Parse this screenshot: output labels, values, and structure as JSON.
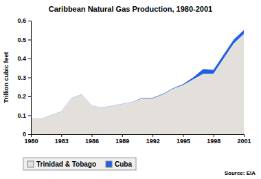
{
  "chart_data": {
    "type": "area",
    "title": "Caribbean Natural Gas Production, 1980-2001",
    "y_label": "Trillion cubic feet",
    "annotation": "Source: EIA",
    "stacked": true,
    "grid": false,
    "legend": "bottom",
    "x": [
      1980,
      1981,
      1982,
      1983,
      1984,
      1985,
      1986,
      1987,
      1988,
      1989,
      1990,
      1991,
      1992,
      1993,
      1994,
      1995,
      1996,
      1997,
      1998,
      1999,
      2000,
      2001
    ],
    "xlim": [
      1980,
      2001
    ],
    "xticks": [
      1980,
      1983,
      1986,
      1989,
      1992,
      1995,
      1998,
      2001
    ],
    "ylim": [
      0,
      0.6
    ],
    "yticks": [
      0,
      0.1,
      0.2,
      0.3,
      0.4,
      0.5,
      0.6
    ],
    "series": [
      {
        "name": "Trinidad & Tobago",
        "color": "#e3e0db",
        "values": [
          0.08,
          0.08,
          0.1,
          0.12,
          0.19,
          0.21,
          0.15,
          0.14,
          0.15,
          0.16,
          0.17,
          0.19,
          0.19,
          0.21,
          0.24,
          0.26,
          0.29,
          0.32,
          0.32,
          0.4,
          0.48,
          0.53
        ]
      },
      {
        "name": "Cuba",
        "color": "#1f5fe6",
        "values": [
          0.001,
          0.001,
          0.001,
          0.001,
          0.001,
          0.001,
          0.001,
          0.001,
          0.001,
          0.001,
          0.001,
          0.003,
          0.003,
          0.003,
          0.003,
          0.005,
          0.01,
          0.025,
          0.02,
          0.02,
          0.02,
          0.02
        ]
      }
    ]
  }
}
